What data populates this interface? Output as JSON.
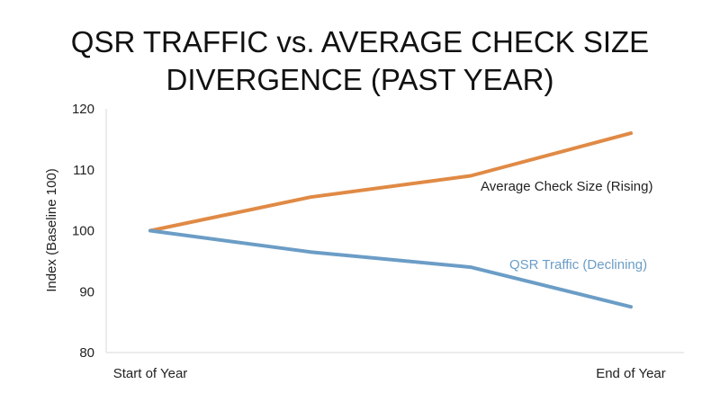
{
  "chart_data": {
    "type": "line",
    "title": "QSR TRAFFIC vs. AVERAGE CHECK SIZE DIVERGENCE (PAST YEAR)",
    "title_lines": [
      "QSR TRAFFIC vs. AVERAGE CHECK SIZE",
      "DIVERGENCE (PAST YEAR)"
    ],
    "xlabel": "",
    "ylabel": "Index (Baseline 100)",
    "x_tick_labels": [
      "Start of Year",
      "End of Year"
    ],
    "x": [
      0,
      1,
      2,
      3
    ],
    "ylim": [
      80,
      120
    ],
    "yticks": [
      80,
      90,
      100,
      110,
      120
    ],
    "grid": false,
    "legend": "inline-labels",
    "series": [
      {
        "name": "Average Check Size (Rising)",
        "values": [
          100,
          105.5,
          109,
          116
        ],
        "color": "#e08a45"
      },
      {
        "name": "QSR Traffic (Declining)",
        "values": [
          100,
          96.5,
          94,
          87.5
        ],
        "color": "#6b9dc6"
      }
    ]
  }
}
